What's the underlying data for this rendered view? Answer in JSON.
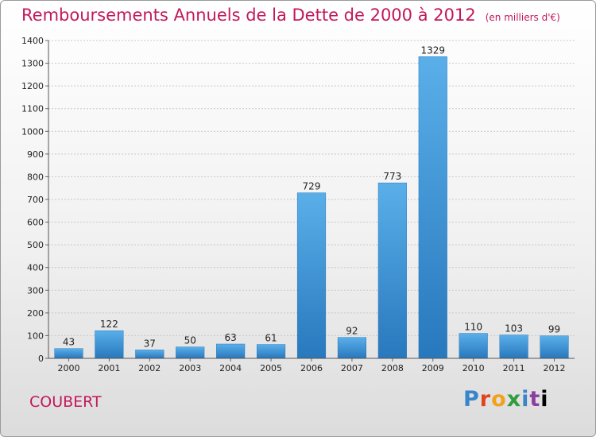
{
  "title": "Remboursements Annuels de la Dette de 2000 à 2012",
  "subtitle": "(en milliers d'€)",
  "city": "COUBERT",
  "logo": [
    "P",
    "r",
    "o",
    "x",
    "i",
    "t",
    "i"
  ],
  "colors": {
    "bar": "#3a93d8",
    "bar_light": "#5aafe9",
    "bar_dark": "#2878bd",
    "title": "#c2185b"
  },
  "chart_data": {
    "type": "bar",
    "title": "Remboursements Annuels de la Dette de 2000 à 2012",
    "subtitle": "(en milliers d'€)",
    "categories": [
      "2000",
      "2001",
      "2002",
      "2003",
      "2004",
      "2005",
      "2006",
      "2007",
      "2008",
      "2009",
      "2010",
      "2011",
      "2012"
    ],
    "values": [
      43,
      122,
      37,
      50,
      63,
      61,
      729,
      92,
      773,
      1329,
      110,
      103,
      99
    ],
    "ylim": [
      0,
      1400
    ],
    "yticks": [
      0,
      100,
      200,
      300,
      400,
      500,
      600,
      700,
      800,
      900,
      1000,
      1100,
      1200,
      1300,
      1400
    ],
    "grid": true
  }
}
